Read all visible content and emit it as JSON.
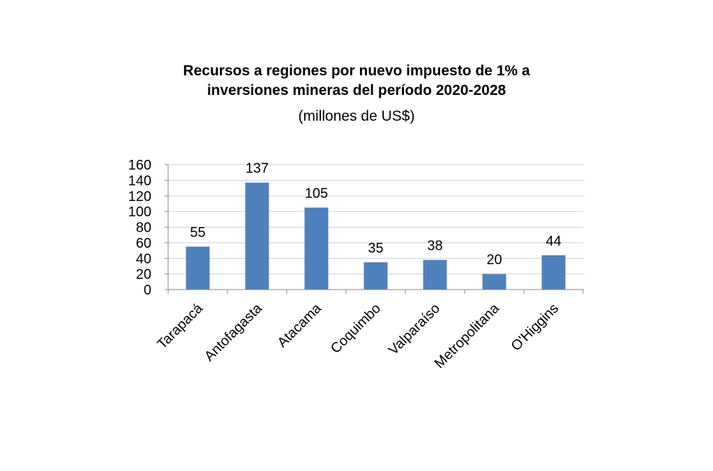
{
  "chart_data": {
    "type": "bar",
    "title": "Recursos a regiones por nuevo impuesto de 1% a",
    "title_line2": "inversiones mineras del período 2020-2028",
    "subtitle": "(millones de US$)",
    "xlabel": "",
    "ylabel": "",
    "categories": [
      "Tarapacá",
      "Antofagasta",
      "Atacama",
      "Coquimbo",
      "Valparaíso",
      "Metropolitana",
      "O'Higgins"
    ],
    "values": [
      55,
      137,
      105,
      35,
      38,
      20,
      44
    ],
    "ylim": [
      0,
      160
    ],
    "yticks": [
      0,
      20,
      40,
      60,
      80,
      100,
      120,
      140,
      160
    ],
    "grid": true,
    "bar_color": "#4F81BD",
    "grid_color": "#C6D0E4"
  }
}
